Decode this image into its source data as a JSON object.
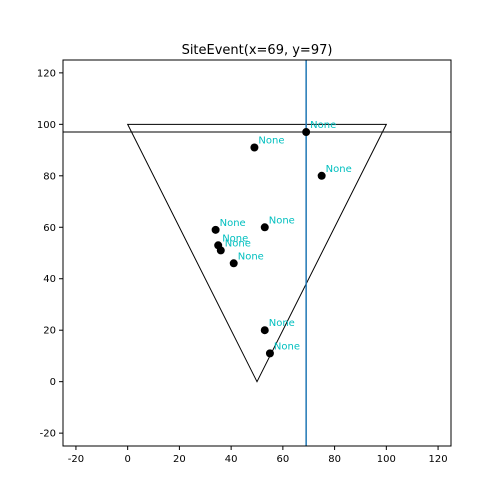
{
  "chart_data": {
    "type": "scatter",
    "title": "SiteEvent(x=69, y=97)",
    "xlabel": "",
    "ylabel": "",
    "xlim": [
      -25,
      125
    ],
    "ylim": [
      -25,
      125
    ],
    "x_ticks": [
      -20,
      0,
      20,
      40,
      60,
      80,
      100,
      120
    ],
    "y_ticks": [
      -20,
      0,
      20,
      40,
      60,
      80,
      100,
      120
    ],
    "grid": false,
    "triangle": [
      [
        0,
        100
      ],
      [
        100,
        100
      ],
      [
        50,
        0
      ]
    ],
    "sweep_line_y": 97,
    "vertical_line_x": 69,
    "points": [
      {
        "x": 69,
        "y": 97,
        "label": "None"
      },
      {
        "x": 49,
        "y": 91,
        "label": "None"
      },
      {
        "x": 75,
        "y": 80,
        "label": "None"
      },
      {
        "x": 34,
        "y": 59,
        "label": "None"
      },
      {
        "x": 53,
        "y": 60,
        "label": "None"
      },
      {
        "x": 35,
        "y": 53,
        "label": "None"
      },
      {
        "x": 36,
        "y": 51,
        "label": "None"
      },
      {
        "x": 41,
        "y": 46,
        "label": "None"
      },
      {
        "x": 53,
        "y": 20,
        "label": "None"
      },
      {
        "x": 55,
        "y": 11,
        "label": "None"
      }
    ],
    "colors": {
      "points": "#000000",
      "labels": "#00bfbf",
      "vertical_line": "#1f77b4",
      "sweep_line": "#000000",
      "triangle": "#000000"
    }
  }
}
